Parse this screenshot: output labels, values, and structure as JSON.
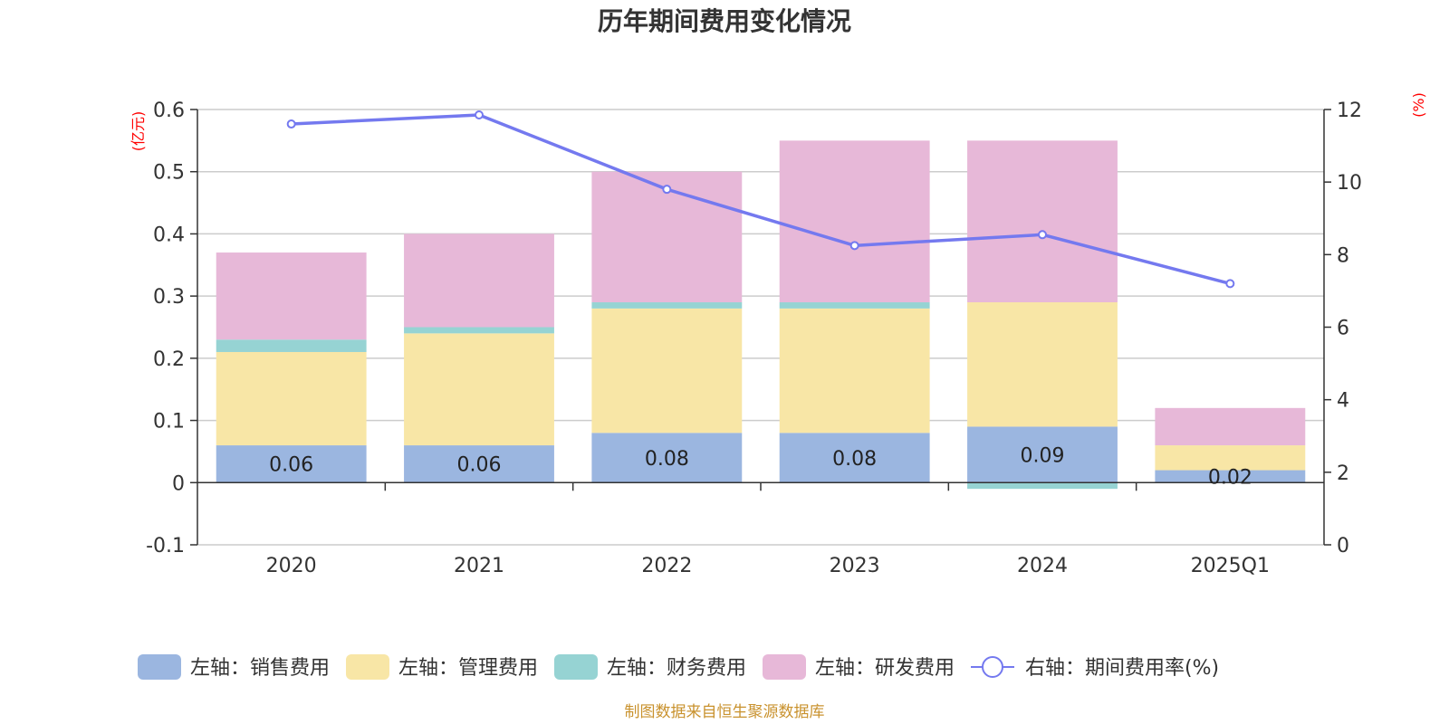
{
  "chart_data": {
    "type": "bar",
    "title": "历年期间费用变化情况",
    "categories": [
      "2020",
      "2021",
      "2022",
      "2023",
      "2024",
      "2025Q1"
    ],
    "left_axis": {
      "unit": "(亿元)",
      "ylim": [
        -0.1,
        0.6
      ],
      "ticks": [
        "-0.1",
        "0",
        "0.1",
        "0.2",
        "0.3",
        "0.4",
        "0.5",
        "0.6"
      ]
    },
    "right_axis": {
      "unit": "(%)",
      "ylim": [
        0,
        12
      ],
      "ticks": [
        "0",
        "2",
        "4",
        "6",
        "8",
        "10",
        "12"
      ]
    },
    "series": [
      {
        "name": "左轴：销售费用",
        "kind": "bar",
        "axis": "left",
        "color": "#9bb6e0",
        "values": [
          0.06,
          0.06,
          0.08,
          0.08,
          0.09,
          0.02
        ],
        "labels": [
          "0.06",
          "0.06",
          "0.08",
          "0.08",
          "0.09",
          "0.02"
        ]
      },
      {
        "name": "左轴：管理费用",
        "kind": "bar",
        "axis": "left",
        "color": "#f8e6a6",
        "values": [
          0.15,
          0.18,
          0.2,
          0.2,
          0.2,
          0.04
        ]
      },
      {
        "name": "左轴：财务费用",
        "kind": "bar",
        "axis": "left",
        "color": "#96d3d3",
        "values": [
          0.02,
          0.01,
          0.01,
          0.01,
          -0.01,
          0.0
        ]
      },
      {
        "name": "左轴：研发费用",
        "kind": "bar",
        "axis": "left",
        "color": "#e7b8d8",
        "values": [
          0.14,
          0.15,
          0.21,
          0.26,
          0.26,
          0.06
        ]
      },
      {
        "name": "右轴：期间费用率(%)",
        "kind": "line",
        "axis": "right",
        "color": "#7479ef",
        "values": [
          11.6,
          11.85,
          9.8,
          8.25,
          8.55,
          7.2
        ]
      }
    ],
    "grid": true,
    "legend_position": "bottom"
  },
  "source_note": "制图数据来自恒生聚源数据库"
}
